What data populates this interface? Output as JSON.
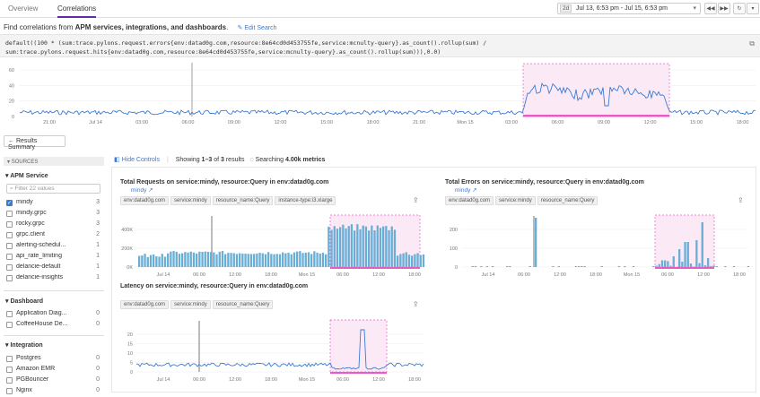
{
  "tabs": [
    {
      "label": "Overview"
    },
    {
      "label": "Correlations"
    }
  ],
  "time": {
    "badge": "2d",
    "range": "Jul 13, 6:53 pm - Jul 15, 6:53 pm"
  },
  "heading": {
    "prefix": "Find correlations from",
    "bold": "APM services, integrations, and dashboards",
    "edit": "Edit Search"
  },
  "query": "default((100 * (sum:trace.pylons.request.errors{env:datad0g.com,resource:8e64cd0d453755fe,service:mcnulty-query}.as_count().rollup(sum) / sum:trace.pylons.request.hits{env:datad0g.com,resource:8e64cd0d453755fe,service:mcnulty-query}.as_count().rollup(sum))),0.0)",
  "main_chart": {
    "y_ticks": [
      "60",
      "40",
      "20",
      "0"
    ],
    "x_ticks": [
      "21:00",
      "Jul 14",
      "03:00",
      "06:00",
      "09:00",
      "12:00",
      "15:00",
      "18:00",
      "21:00",
      "Mon 15",
      "03:00",
      "06:00",
      "09:00",
      "12:00",
      "15:00",
      "18:00"
    ]
  },
  "results_summary": "Results Summary",
  "sidebar": {
    "header": "SOURCES",
    "apm_title": "APM Service",
    "filter_placeholder": "Filter 22 values",
    "apm": [
      {
        "name": "mindy",
        "count": "3",
        "checked": true
      },
      {
        "name": "mindy.grpc",
        "count": "3"
      },
      {
        "name": "rocky.grpc",
        "count": "3"
      },
      {
        "name": "grpc.client",
        "count": "2"
      },
      {
        "name": "alerting-schedul...",
        "count": "1"
      },
      {
        "name": "api_rate_limiting",
        "count": "1"
      },
      {
        "name": "delancie-default",
        "count": "1"
      },
      {
        "name": "delancie-insights",
        "count": "1"
      }
    ],
    "dashboard_title": "Dashboard",
    "dashboards": [
      {
        "name": "Application Diag...",
        "count": "0"
      },
      {
        "name": "CoffeeHouse De...",
        "count": "0"
      }
    ],
    "integration_title": "Integration",
    "integrations": [
      {
        "name": "Postgres",
        "count": "0"
      },
      {
        "name": "Amazon EMR",
        "count": "0"
      },
      {
        "name": "PGBouncer",
        "count": "0"
      },
      {
        "name": "Nginx",
        "count": "0"
      }
    ]
  },
  "controls": {
    "hide": "Hide Controls",
    "showing": "Showing",
    "range": "1–3",
    "of": "of",
    "total": "3",
    "results": "results",
    "searching": "Searching",
    "metrics": "4.00k metrics"
  },
  "charts": [
    {
      "title": "Total Requests on service:mindy, resource:Query in env:datad0g.com",
      "link": "mindy",
      "tags": [
        "env:datad0g.com",
        "service:mindy",
        "resource_name:Query",
        "instance-type:i3.xlarge"
      ],
      "y_ticks": [
        "400K",
        "200K",
        "0K"
      ],
      "x_ticks": [
        "Jul 14",
        "06:00",
        "12:00",
        "18:00",
        "Mon 15",
        "06:00",
        "12:00",
        "18:00"
      ]
    },
    {
      "title": "Total Errors on service:mindy, resource:Query in env:datad0g.com",
      "link": "mindy",
      "tags": [
        "env:datad0g.com",
        "service:mindy",
        "resource_name:Query"
      ],
      "y_ticks": [
        "200",
        "100",
        "0"
      ],
      "x_ticks": [
        "Jul 14",
        "06:00",
        "12:00",
        "18:00",
        "Mon 15",
        "06:00",
        "12:00",
        "18:00"
      ]
    },
    {
      "title": "Latency on service:mindy, resource:Query in env:datad0g.com",
      "link": "mindy",
      "tags": [
        "env:datad0g.com",
        "service:mindy",
        "resource_name:Query"
      ],
      "y_ticks": [
        "20",
        "15",
        "10",
        "5",
        "0"
      ],
      "x_ticks": [
        "Jul 14",
        "06:00",
        "12:00",
        "18:00",
        "Mon 15",
        "06:00",
        "12:00",
        "18:00"
      ]
    }
  ],
  "colors": {
    "accent": "#632ca6",
    "line": "#3a7bd5",
    "bar": "#6aaed6",
    "highlight": "#e85bc7"
  }
}
